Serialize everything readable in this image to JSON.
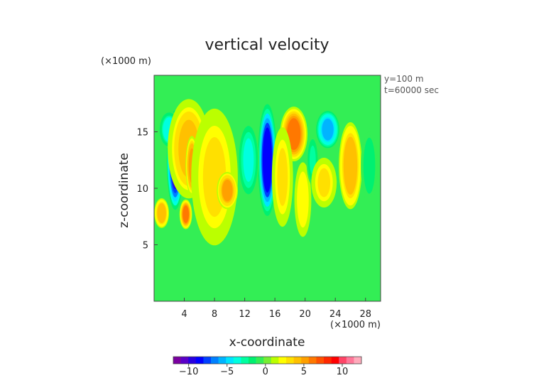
{
  "chart_data": {
    "type": "heatmap",
    "title": "vertical velocity",
    "xlabel": "x-coordinate",
    "ylabel": "z-coordinate",
    "x_unit": "(×1000 m)",
    "y_unit": "(×1000 m)",
    "annotations": [
      "y=100 m",
      "t=60000 sec"
    ],
    "xlim": [
      0,
      30
    ],
    "ylim": [
      0,
      20
    ],
    "xticks": [
      4,
      8,
      12,
      16,
      20,
      24,
      28
    ],
    "yticks": [
      5,
      10,
      15
    ],
    "colorbar": {
      "ticks": [
        -10,
        -5,
        0,
        5,
        10
      ],
      "range": [
        -12,
        12.5
      ],
      "colors": [
        "#7a00a0",
        "#5a00c8",
        "#2800e0",
        "#0000ff",
        "#0040ff",
        "#0080ff",
        "#00b4ff",
        "#00e4ff",
        "#00ffe0",
        "#00ffa0",
        "#00f070",
        "#33ee55",
        "#77ee33",
        "#bbff00",
        "#ffff00",
        "#ffe000",
        "#ffc000",
        "#ffa000",
        "#ff7800",
        "#ff5000",
        "#ff2800",
        "#ff0000",
        "#ff4466",
        "#ff7799",
        "#ffaabb"
      ]
    },
    "cells": [
      {
        "x": 2.8,
        "z": 12.5,
        "value": -9.5,
        "rx": 0.8,
        "rz": 4.0
      },
      {
        "x": 2.0,
        "z": 15.2,
        "value": -4.0,
        "rx": 1.0,
        "rz": 1.5
      },
      {
        "x": 4.6,
        "z": 13.5,
        "value": 4.0,
        "rx": 2.0,
        "rz": 4.0
      },
      {
        "x": 5.0,
        "z": 12.0,
        "value": 5.5,
        "rx": 0.6,
        "rz": 2.4
      },
      {
        "x": 4.2,
        "z": 7.7,
        "value": 6.5,
        "rx": 0.6,
        "rz": 1.2
      },
      {
        "x": 8.0,
        "z": 11.0,
        "value": 3.0,
        "rx": 2.2,
        "rz": 5.5
      },
      {
        "x": 9.7,
        "z": 9.8,
        "value": 5.0,
        "rx": 1.0,
        "rz": 1.5
      },
      {
        "x": 1.0,
        "z": 7.8,
        "value": 4.5,
        "rx": 0.7,
        "rz": 1.2
      },
      {
        "x": 15.0,
        "z": 12.5,
        "value": -8.5,
        "rx": 0.9,
        "rz": 4.5
      },
      {
        "x": 12.5,
        "z": 12.5,
        "value": -3.5,
        "rx": 1.0,
        "rz": 3.0
      },
      {
        "x": 18.5,
        "z": 14.8,
        "value": 6.0,
        "rx": 1.3,
        "rz": 2.2
      },
      {
        "x": 17.0,
        "z": 11.0,
        "value": 3.0,
        "rx": 1.0,
        "rz": 4.0
      },
      {
        "x": 19.7,
        "z": 9.0,
        "value": 2.5,
        "rx": 0.8,
        "rz": 3.0
      },
      {
        "x": 21.0,
        "z": 12.5,
        "value": -2.5,
        "rx": 0.6,
        "rz": 2.0
      },
      {
        "x": 23.0,
        "z": 15.2,
        "value": -6.0,
        "rx": 1.1,
        "rz": 1.5
      },
      {
        "x": 22.5,
        "z": 10.5,
        "value": 3.0,
        "rx": 1.2,
        "rz": 2.0
      },
      {
        "x": 26.0,
        "z": 12.0,
        "value": 4.5,
        "rx": 1.1,
        "rz": 3.5
      },
      {
        "x": 28.5,
        "z": 12.0,
        "value": -2.0,
        "rx": 0.8,
        "rz": 3.0
      }
    ]
  }
}
